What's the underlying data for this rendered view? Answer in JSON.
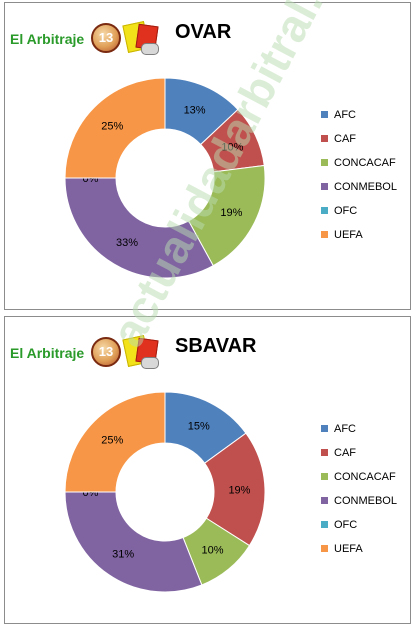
{
  "brand": {
    "text": "El Arbitraje",
    "badge_number": "13"
  },
  "watermark": "actualidadarbitral.com",
  "colors": {
    "AFC": "#4f81bd",
    "CAF": "#c0504d",
    "CONCACAF": "#9bbb59",
    "CONMEBOL": "#8064a2",
    "OFC": "#4bacc6",
    "UEFA": "#f79646",
    "brand": "#2a9a2a"
  },
  "chart_data": [
    {
      "type": "pie",
      "title": "OVAR",
      "legend_position": "right",
      "categories": [
        "AFC",
        "CAF",
        "CONCACAF",
        "CONMEBOL",
        "OFC",
        "UEFA"
      ],
      "values": [
        13,
        10,
        19,
        33,
        0,
        25
      ],
      "labels": [
        "13%",
        "10%",
        "19%",
        "33%",
        "0%",
        "25%"
      ]
    },
    {
      "type": "pie",
      "title": "SBAVAR",
      "legend_position": "right",
      "categories": [
        "AFC",
        "CAF",
        "CONCACAF",
        "CONMEBOL",
        "OFC",
        "UEFA"
      ],
      "values": [
        15,
        19,
        10,
        31,
        0,
        25
      ],
      "labels": [
        "15%",
        "19%",
        "10%",
        "31%",
        "0%",
        "25%"
      ]
    }
  ]
}
